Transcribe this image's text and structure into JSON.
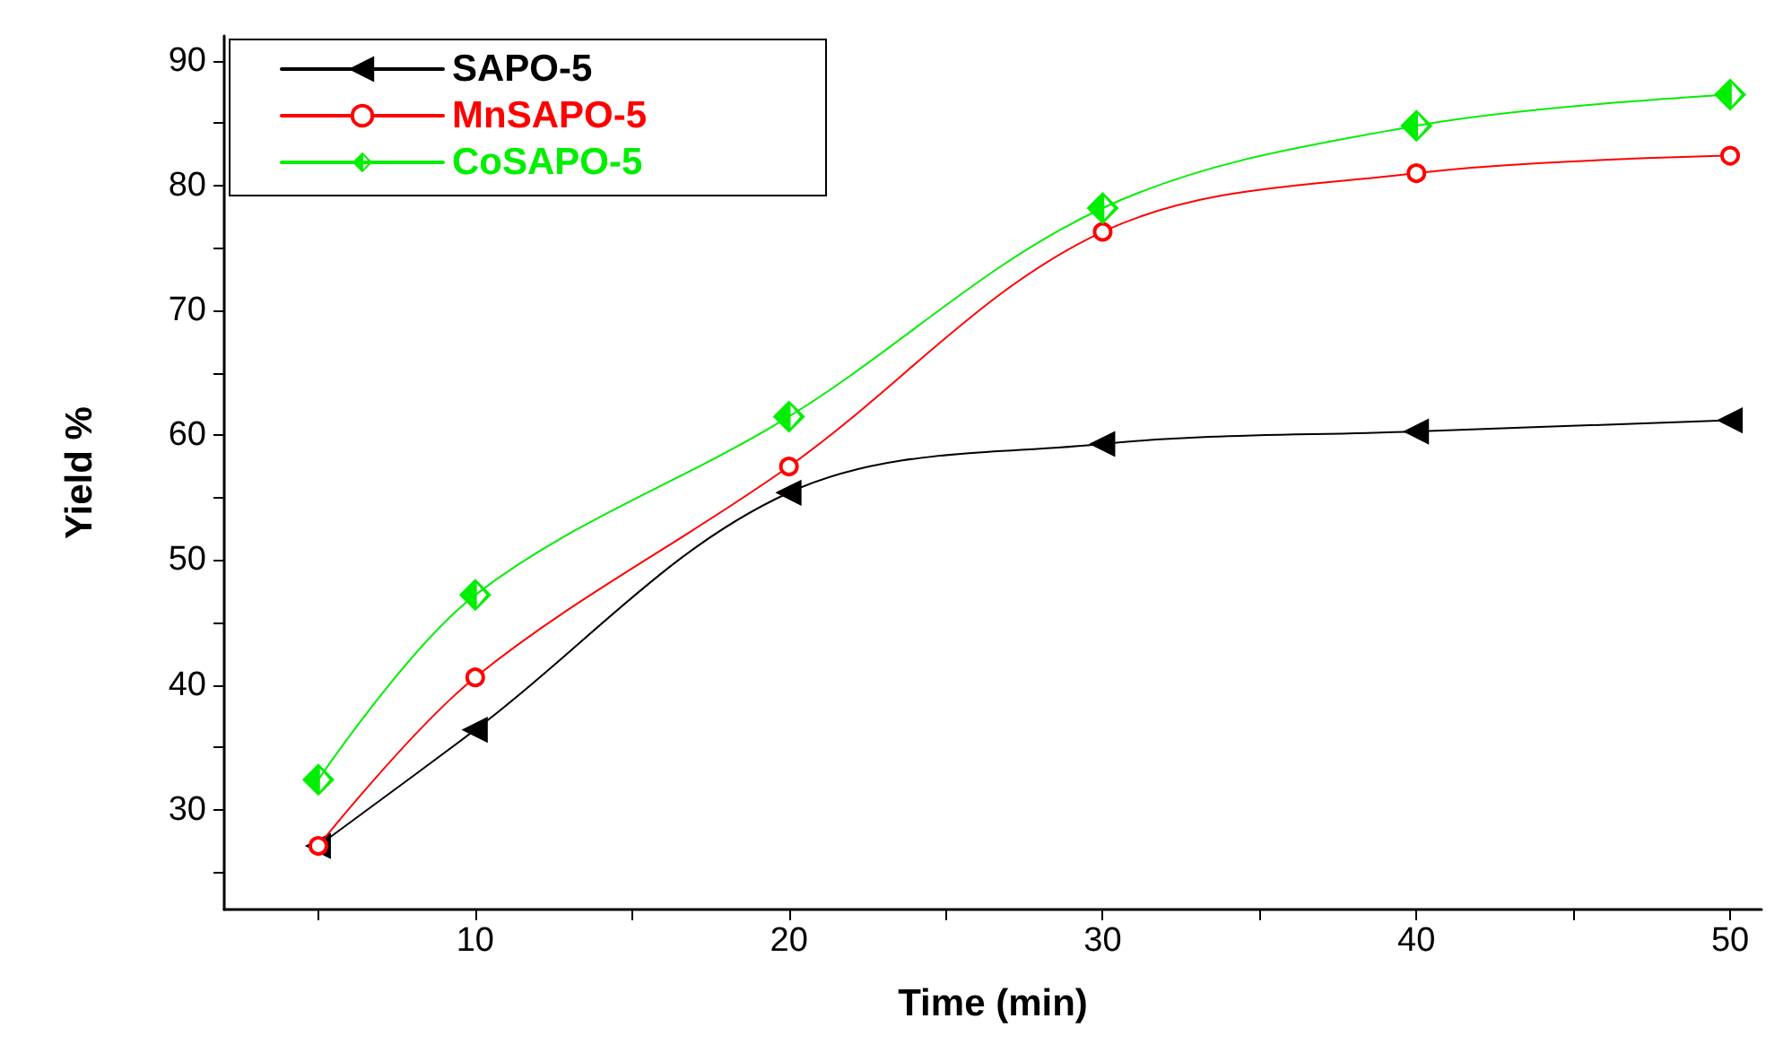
{
  "chart_data": {
    "type": "line",
    "xlabel": "Time (min)",
    "ylabel": "Yield %",
    "xlim": [
      2,
      51
    ],
    "xticks": [
      {
        "value": 5,
        "label": null
      },
      10,
      {
        "value": 15,
        "label": null
      },
      20,
      {
        "value": 25,
        "label": null
      },
      30,
      {
        "value": 35,
        "label": null
      },
      40,
      {
        "value": 45,
        "label": null
      },
      50
    ],
    "ylim": [
      22,
      92
    ],
    "yticks": [
      {
        "value": 25,
        "label": null
      },
      30,
      {
        "value": 35,
        "label": null
      },
      40,
      {
        "value": 45,
        "label": null
      },
      50,
      {
        "value": 55,
        "label": null
      },
      60,
      {
        "value": 65,
        "label": null
      },
      70,
      {
        "value": 75,
        "label": null
      },
      80,
      {
        "value": 85,
        "label": null
      },
      90
    ],
    "x": [
      5,
      10,
      20,
      30,
      40,
      50
    ],
    "series": [
      {
        "name": "SAPO-5",
        "color": "#000000",
        "marker": "triangle",
        "values": [
          27.1,
          36.4,
          55.4,
          59.3,
          60.3,
          61.2
        ]
      },
      {
        "name": "MnSAPO-5",
        "color": "#ff0000",
        "marker": "circle",
        "values": [
          27.1,
          40.6,
          57.5,
          76.3,
          81.0,
          82.4
        ]
      },
      {
        "name": "CoSAPO-5",
        "color": "#00ee00",
        "marker": "diamond",
        "values": [
          32.4,
          47.2,
          61.5,
          78.2,
          84.8,
          87.3
        ]
      }
    ],
    "grid": false,
    "legend": "top left",
    "line_style": "solid"
  }
}
